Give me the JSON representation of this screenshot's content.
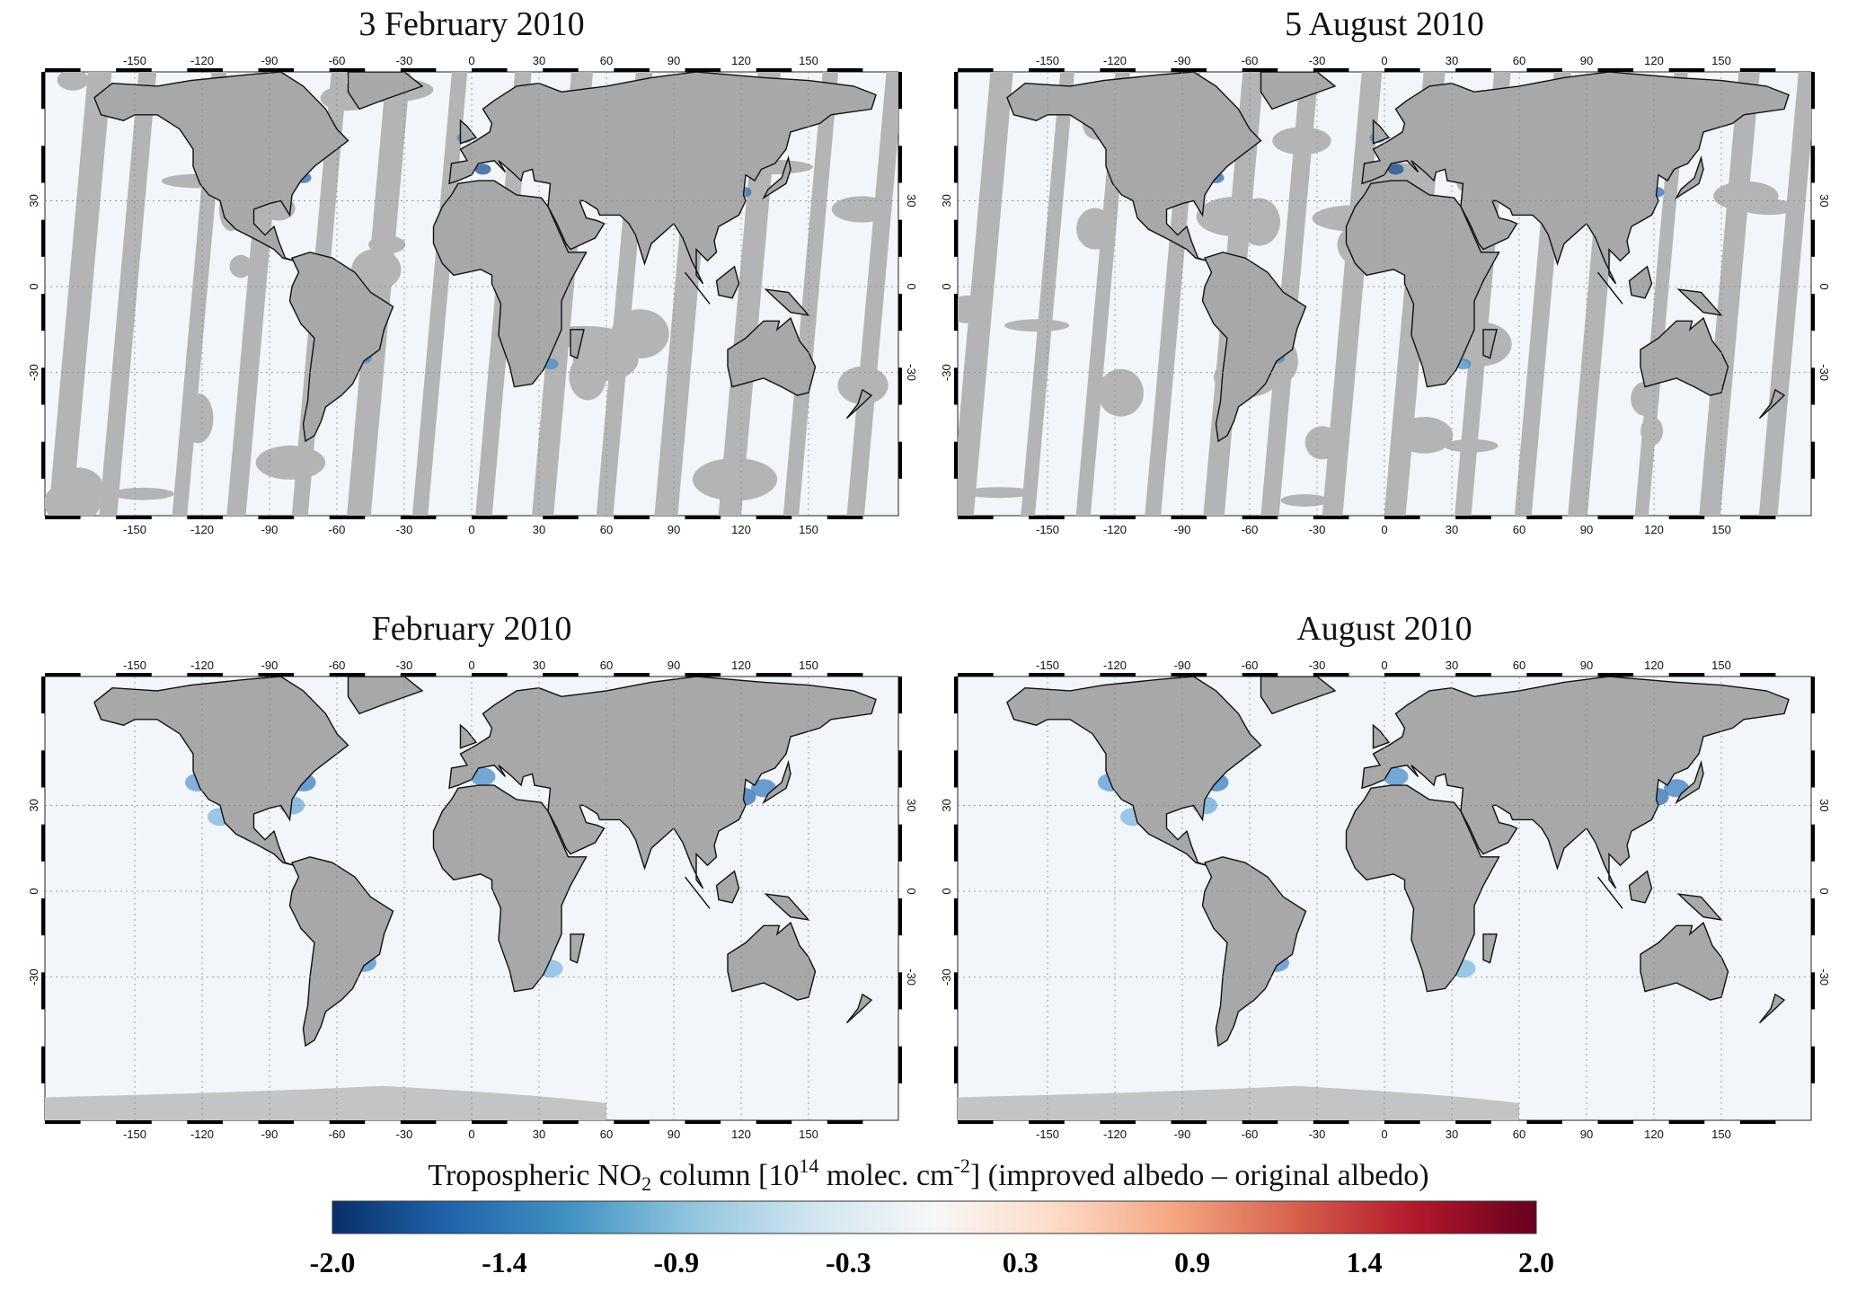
{
  "panels": [
    {
      "id": "p1",
      "title": "3 February 2010",
      "type": "daily"
    },
    {
      "id": "p2",
      "title": "5 August 2010",
      "type": "daily"
    },
    {
      "id": "p3",
      "title": "February 2010",
      "type": "monthly"
    },
    {
      "id": "p4",
      "title": "August 2010",
      "type": "monthly"
    }
  ],
  "axes": {
    "lon_ticks": [
      "-150",
      "-120",
      "-90",
      "-60",
      "-30",
      "0",
      "30",
      "60",
      "90",
      "120",
      "150"
    ],
    "lat_ticks": [
      "30",
      "0",
      "-30"
    ],
    "grid": "dotted"
  },
  "colorbar": {
    "title_pre": "Tropospheric NO",
    "title_sub": "2",
    "title_mid": " column [10",
    "title_sup1": "14",
    "title_mid2": " molec. cm",
    "title_sup2": "-2",
    "title_post": "] (improved albedo – original albedo)",
    "ticks": [
      "-2.0",
      "-1.4",
      "-0.9",
      "-0.3",
      "0.3",
      "0.9",
      "1.4",
      "2.0"
    ],
    "colors": [
      "#08306b",
      "#2166ac",
      "#4393c3",
      "#92c5de",
      "#d1e5f0",
      "#f7f7f7",
      "#fddbc7",
      "#f4a582",
      "#d6604d",
      "#b2182b",
      "#67001f"
    ]
  },
  "colors": {
    "land": "#a8a8a8",
    "ocean": "#f2f5f9",
    "missing": "#b4b4b4",
    "coast": "#111111"
  }
}
